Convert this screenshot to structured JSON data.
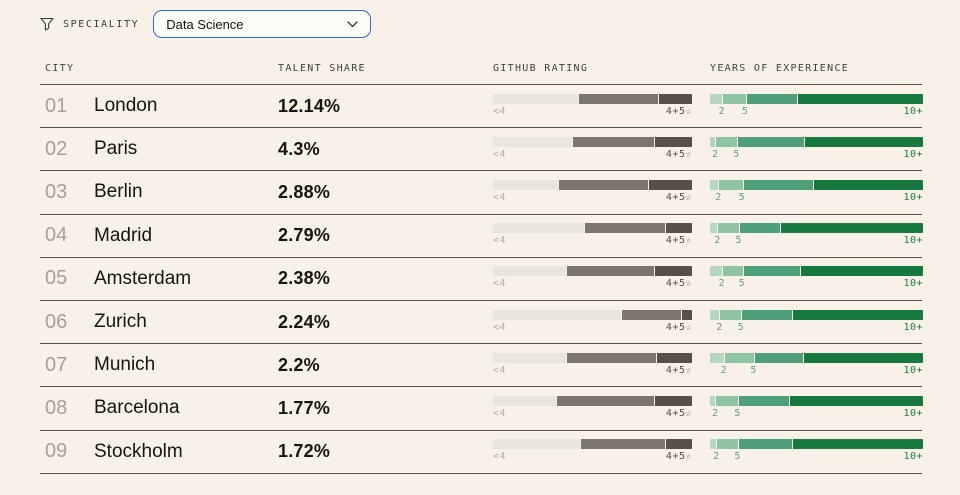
{
  "filter": {
    "label": "SPECIALITY",
    "dropdown_value": "Data Science"
  },
  "colors": {
    "background": "#f7f1e8",
    "accent_blue": "#2c6ae0",
    "row_border": "#59534c",
    "github_segments": [
      "#eae5da",
      "#7c756b",
      "#57504a"
    ],
    "years_segments": [
      "#b7d6c2",
      "#8ec3a4",
      "#4fa078",
      "#17793f"
    ],
    "github_label_left_color": "#b6afa4",
    "github_label_right_color": "#57504a",
    "years_label_color": "#5fa37f",
    "years_label_right_color": "#1f7b49"
  },
  "table": {
    "columns": [
      "CITY",
      "TALENT SHARE",
      "GITHUB RATING",
      "YEARS OF EXPERIENCE"
    ],
    "github_legend": {
      "left": "<4",
      "right": "4+5☆"
    },
    "years_legend": {
      "first": "2",
      "second": "5",
      "right": "10+"
    },
    "rows": [
      {
        "rank": "01",
        "city": "London",
        "share": "12.14%",
        "github_segments": [
          43,
          40,
          17
        ],
        "years_segments": [
          5.5,
          11,
          24,
          59.5
        ]
      },
      {
        "rank": "02",
        "city": "Paris",
        "share": "4.3%",
        "github_segments": [
          40,
          41,
          19
        ],
        "years_segments": [
          2.5,
          10,
          31.5,
          56
        ]
      },
      {
        "rank": "03",
        "city": "Berlin",
        "share": "2.88%",
        "github_segments": [
          33,
          45,
          22
        ],
        "years_segments": [
          4,
          11,
          33,
          52
        ]
      },
      {
        "rank": "04",
        "city": "Madrid",
        "share": "2.79%",
        "github_segments": [
          46,
          41,
          13
        ],
        "years_segments": [
          3.5,
          10,
          19,
          67.5
        ]
      },
      {
        "rank": "05",
        "city": "Amsterdam",
        "share": "2.38%",
        "github_segments": [
          37,
          44,
          19
        ],
        "years_segments": [
          5.5,
          9.5,
          27,
          58
        ]
      },
      {
        "rank": "06",
        "city": "Zurich",
        "share": "2.24%",
        "github_segments": [
          65,
          30,
          5
        ],
        "years_segments": [
          4.5,
          10,
          23.5,
          62
        ]
      },
      {
        "rank": "07",
        "city": "Munich",
        "share": "2.2%",
        "github_segments": [
          37,
          45,
          18
        ],
        "years_segments": [
          6.5,
          14,
          23,
          56.5
        ]
      },
      {
        "rank": "08",
        "city": "Barcelona",
        "share": "1.77%",
        "github_segments": [
          32,
          49,
          19
        ],
        "years_segments": [
          2.5,
          10.5,
          23.5,
          63.5
        ]
      },
      {
        "rank": "09",
        "city": "Stockholm",
        "share": "1.72%",
        "github_segments": [
          44,
          43,
          13
        ],
        "years_segments": [
          3,
          10,
          25,
          62
        ]
      }
    ]
  }
}
